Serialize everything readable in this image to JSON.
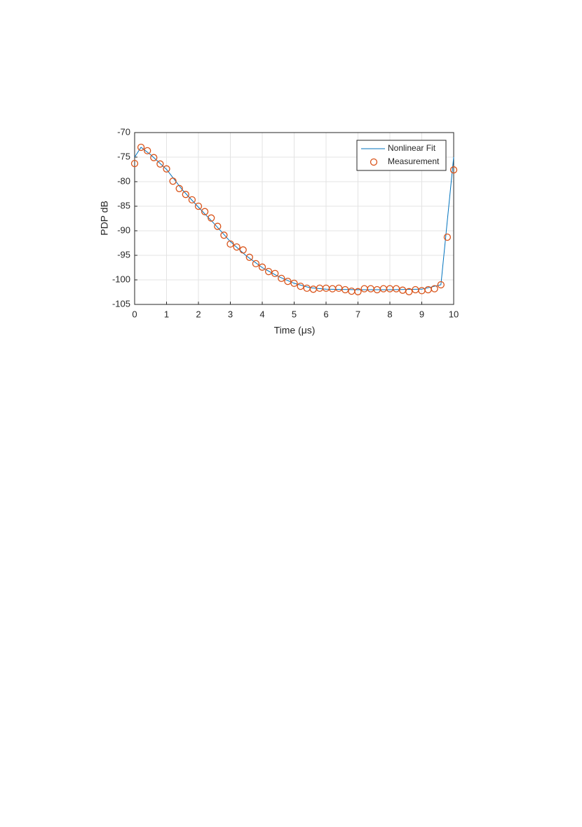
{
  "chart_data": {
    "type": "line",
    "xlabel": "Time (μs)",
    "ylabel": "PDP dB",
    "xlim": [
      0,
      10
    ],
    "ylim": [
      -105,
      -70
    ],
    "xticks": [
      0,
      1,
      2,
      3,
      4,
      5,
      6,
      7,
      8,
      9,
      10
    ],
    "yticks": [
      -70,
      -75,
      -80,
      -85,
      -90,
      -95,
      -100,
      -105
    ],
    "grid": true,
    "legend": "upper right",
    "series": [
      {
        "name": "Nonlinear Fit",
        "color": "#0072bd",
        "marker": "none",
        "x": [
          0,
          0.2,
          0.5,
          1,
          1.5,
          2,
          2.5,
          3,
          3.5,
          4,
          4.5,
          5,
          5.5,
          6,
          7,
          8,
          9,
          9.6,
          10
        ],
        "values": [
          -75,
          -73,
          -74.5,
          -77.5,
          -81.7,
          -85.2,
          -88.6,
          -92.2,
          -95.1,
          -97.5,
          -99.3,
          -100.7,
          -101.6,
          -101.9,
          -102,
          -102,
          -101.9,
          -101,
          -75
        ]
      },
      {
        "name": "Measurement",
        "color": "#d95319",
        "marker": "circle",
        "x": [
          0,
          0.2,
          0.4,
          0.6,
          0.8,
          1,
          1.2,
          1.4,
          1.6,
          1.8,
          2,
          2.2,
          2.4,
          2.6,
          2.8,
          3,
          3.2,
          3.4,
          3.6,
          3.8,
          4,
          4.2,
          4.4,
          4.6,
          4.8,
          5,
          5.2,
          5.4,
          5.6,
          5.8,
          6,
          6.2,
          6.4,
          6.6,
          6.8,
          7,
          7.2,
          7.4,
          7.6,
          7.8,
          8,
          8.2,
          8.4,
          8.6,
          8.8,
          9,
          9.2,
          9.4,
          9.6,
          9.8,
          10
        ],
        "values": [
          -76.3,
          -73,
          -73.7,
          -75.1,
          -76.4,
          -77.4,
          -79.9,
          -81.4,
          -82.6,
          -83.7,
          -85,
          -86.1,
          -87.4,
          -89.1,
          -90.9,
          -92.7,
          -93.3,
          -93.9,
          -95.4,
          -96.7,
          -97.4,
          -98.3,
          -98.7,
          -99.7,
          -100.3,
          -100.7,
          -101.3,
          -101.7,
          -101.9,
          -101.7,
          -101.7,
          -101.8,
          -101.7,
          -102,
          -102.3,
          -102.4,
          -101.8,
          -101.8,
          -102,
          -101.8,
          -101.8,
          -101.8,
          -102.1,
          -102.4,
          -102,
          -102.2,
          -102,
          -101.8,
          -101,
          -91.3,
          -77.6
        ]
      }
    ]
  }
}
